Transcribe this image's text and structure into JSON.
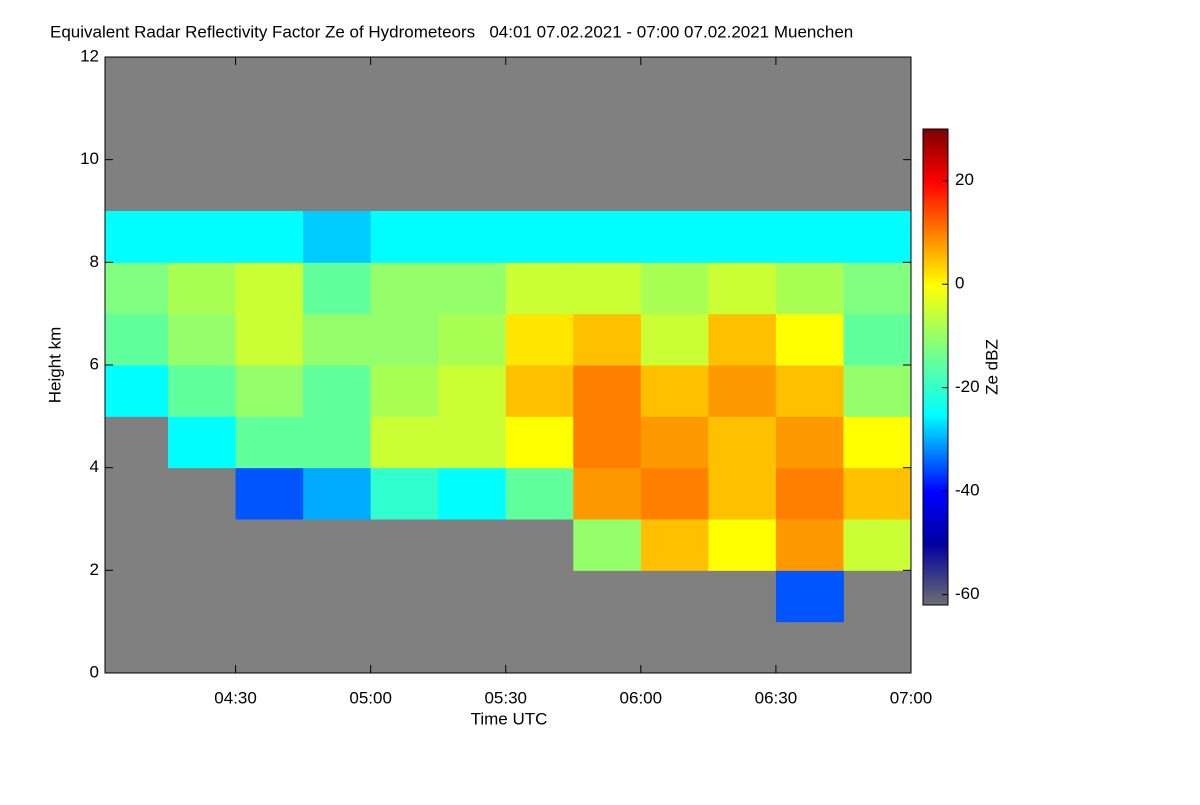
{
  "chart_data": {
    "type": "heatmap",
    "title": "Equivalent Radar Reflectivity Factor Ze of Hydrometeors   04:01 07.02.2021 - 07:00 07.02.2021 Muenchen",
    "x_label": "Time UTC",
    "y_label": "Height km",
    "colorbar_label": "Ze dBZ",
    "xlim": [
      4.0167,
      7.0
    ],
    "xticks": [
      {
        "value": 4.5,
        "label": "04:30"
      },
      {
        "value": 5.0,
        "label": "05:00"
      },
      {
        "value": 5.5,
        "label": "05:30"
      },
      {
        "value": 6.0,
        "label": "06:00"
      },
      {
        "value": 6.5,
        "label": "06:30"
      },
      {
        "value": 7.0,
        "label": "07:00"
      }
    ],
    "ylim": [
      0,
      12
    ],
    "yticks": [
      0,
      2,
      4,
      6,
      8,
      10,
      12
    ],
    "x_bins": [
      4.0167,
      4.25,
      4.5,
      4.75,
      5.0,
      5.25,
      5.5,
      5.75,
      6.0,
      6.25,
      6.5,
      6.75,
      7.0
    ],
    "y_bins": [
      0,
      1,
      2,
      3,
      4,
      5,
      6,
      7,
      8,
      9
    ],
    "z": [
      [
        null,
        null,
        null,
        null,
        null,
        null,
        null,
        null,
        null,
        null,
        null,
        null
      ],
      [
        null,
        null,
        null,
        null,
        null,
        null,
        null,
        null,
        null,
        null,
        -35,
        null
      ],
      [
        null,
        null,
        null,
        null,
        null,
        null,
        null,
        -10,
        5,
        0,
        8,
        -5
      ],
      [
        null,
        null,
        -35,
        -30,
        -20,
        -25,
        -15,
        8,
        10,
        5,
        10,
        5
      ],
      [
        null,
        -25,
        -15,
        -15,
        -5,
        -5,
        0,
        10,
        8,
        5,
        8,
        0
      ],
      [
        -25,
        -15,
        -10,
        -15,
        -8,
        -5,
        5,
        10,
        5,
        8,
        5,
        -10
      ],
      [
        -15,
        -10,
        -5,
        -10,
        -10,
        -8,
        2,
        5,
        -5,
        5,
        0,
        -15
      ],
      [
        -12,
        -8,
        -5,
        -15,
        -10,
        -10,
        -5,
        -5,
        -8,
        -5,
        -8,
        -12
      ],
      [
        -25,
        -25,
        -25,
        -28,
        -25,
        -25,
        -25,
        -25,
        -25,
        -25,
        -25,
        -25
      ]
    ],
    "null_color": "#808080",
    "zlim": [
      -62,
      30
    ],
    "zticks": [
      -60,
      -40,
      -20,
      0,
      20
    ],
    "colorscale": [
      [
        -62,
        "#707070"
      ],
      [
        -50,
        "#0000a0"
      ],
      [
        -40,
        "#0000ff"
      ],
      [
        -25,
        "#00ffff"
      ],
      [
        -12,
        "#80ff80"
      ],
      [
        0,
        "#ffff00"
      ],
      [
        10,
        "#ff8000"
      ],
      [
        20,
        "#ff0000"
      ],
      [
        30,
        "#800000"
      ]
    ]
  }
}
